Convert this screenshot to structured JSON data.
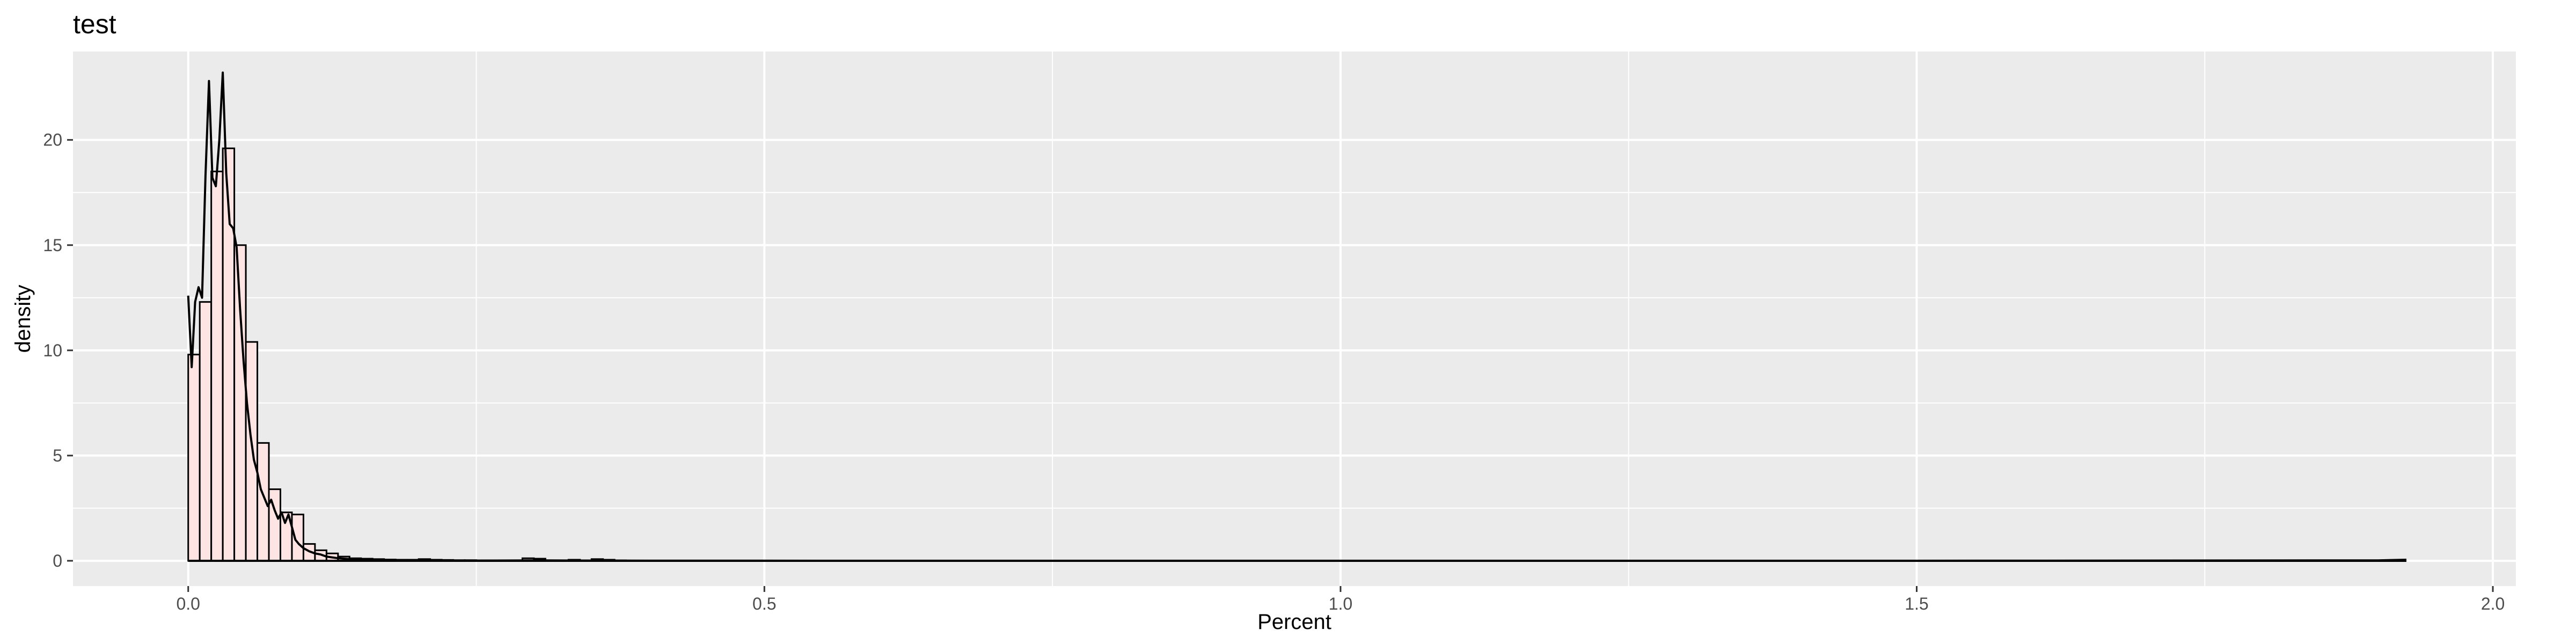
{
  "chart_data": {
    "type": "bar",
    "title": "test",
    "xlabel": "Percent",
    "ylabel": "density",
    "xlim": [
      -0.1,
      2.02
    ],
    "ylim": [
      -1.2,
      24.2
    ],
    "xticks": [
      0.0,
      0.5,
      1.0,
      1.5,
      2.0
    ],
    "xtick_labels": [
      "0.0",
      "0.5",
      "1.0",
      "1.5",
      "2.0"
    ],
    "yticks": [
      0,
      5,
      10,
      15,
      20
    ],
    "ytick_labels": [
      "0",
      "5",
      "10",
      "15",
      "20"
    ],
    "grid": true,
    "legend": "none",
    "colors": {
      "panel": "#ebebeb",
      "grid": "#ffffff",
      "bar_fill": "#ffe4e4",
      "bar_outline": "#000000",
      "density_line": "#000000"
    },
    "histogram": {
      "bin_width": 0.01,
      "bins": [
        {
          "x": 0.005,
          "density": 9.8
        },
        {
          "x": 0.015,
          "density": 12.3
        },
        {
          "x": 0.025,
          "density": 18.5
        },
        {
          "x": 0.035,
          "density": 19.6
        },
        {
          "x": 0.045,
          "density": 15.0
        },
        {
          "x": 0.055,
          "density": 10.4
        },
        {
          "x": 0.065,
          "density": 5.6
        },
        {
          "x": 0.075,
          "density": 3.4
        },
        {
          "x": 0.085,
          "density": 2.3
        },
        {
          "x": 0.095,
          "density": 2.2
        },
        {
          "x": 0.105,
          "density": 0.8
        },
        {
          "x": 0.115,
          "density": 0.5
        },
        {
          "x": 0.125,
          "density": 0.35
        },
        {
          "x": 0.135,
          "density": 0.2
        },
        {
          "x": 0.145,
          "density": 0.12
        },
        {
          "x": 0.155,
          "density": 0.1
        },
        {
          "x": 0.165,
          "density": 0.08
        },
        {
          "x": 0.175,
          "density": 0.06
        },
        {
          "x": 0.185,
          "density": 0.05
        },
        {
          "x": 0.195,
          "density": 0.05
        },
        {
          "x": 0.205,
          "density": 0.08
        },
        {
          "x": 0.215,
          "density": 0.05
        },
        {
          "x": 0.225,
          "density": 0.04
        },
        {
          "x": 0.235,
          "density": 0.03
        },
        {
          "x": 0.245,
          "density": 0.03
        },
        {
          "x": 0.255,
          "density": 0.02
        },
        {
          "x": 0.265,
          "density": 0.02
        },
        {
          "x": 0.275,
          "density": 0.02
        },
        {
          "x": 0.285,
          "density": 0.02
        },
        {
          "x": 0.295,
          "density": 0.12
        },
        {
          "x": 0.305,
          "density": 0.1
        },
        {
          "x": 0.315,
          "density": 0.02
        },
        {
          "x": 0.325,
          "density": 0.02
        },
        {
          "x": 0.335,
          "density": 0.05
        },
        {
          "x": 0.345,
          "density": 0.02
        },
        {
          "x": 0.355,
          "density": 0.08
        },
        {
          "x": 0.365,
          "density": 0.05
        },
        {
          "x": 0.375,
          "density": 0.02
        }
      ]
    },
    "density_curve": {
      "x": [
        0.0,
        0.003,
        0.006,
        0.009,
        0.012,
        0.015,
        0.018,
        0.021,
        0.024,
        0.027,
        0.03,
        0.033,
        0.036,
        0.039,
        0.042,
        0.045,
        0.048,
        0.051,
        0.054,
        0.057,
        0.06,
        0.063,
        0.066,
        0.069,
        0.072,
        0.075,
        0.078,
        0.081,
        0.084,
        0.087,
        0.09,
        0.093,
        0.096,
        0.1,
        0.105,
        0.11,
        0.115,
        0.12,
        0.13,
        0.14,
        0.15,
        0.17,
        0.2,
        0.25,
        0.3,
        0.35,
        0.4,
        0.6,
        1.0,
        1.5,
        1.9,
        1.925
      ],
      "y": [
        12.6,
        9.2,
        12.3,
        13.0,
        12.5,
        18.3,
        22.8,
        18.2,
        17.8,
        20.0,
        23.2,
        18.4,
        16.0,
        15.8,
        14.9,
        12.0,
        9.5,
        7.5,
        6.0,
        4.8,
        4.2,
        3.4,
        3.0,
        2.6,
        2.9,
        2.4,
        2.0,
        2.3,
        1.8,
        2.2,
        1.6,
        1.0,
        0.8,
        0.6,
        0.45,
        0.35,
        0.3,
        0.2,
        0.12,
        0.08,
        0.05,
        0.03,
        0.02,
        0.01,
        0.02,
        0.01,
        0.005,
        0.0,
        0.0,
        0.0,
        0.02,
        0.05
      ]
    },
    "baseline_range": [
      0.0,
      1.925
    ]
  }
}
